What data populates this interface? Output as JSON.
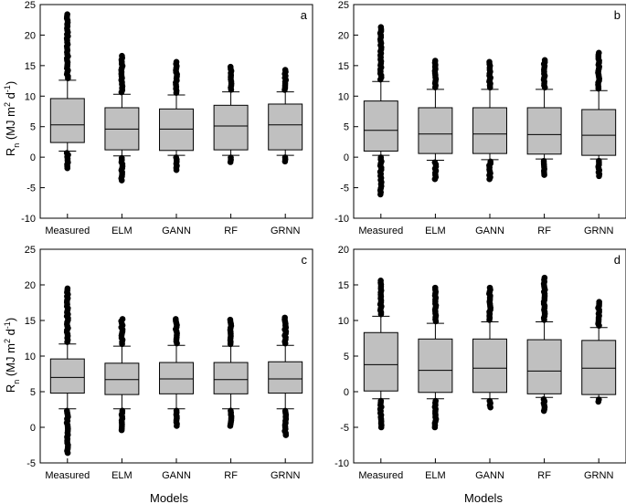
{
  "figure": {
    "ylabel_main": "R",
    "ylabel_sub": "n",
    "ylabel_unit_start": " (MJ m",
    "ylabel_sup1": "2",
    "ylabel_unit_mid": " d",
    "ylabel_sup2": "-1",
    "ylabel_unit_end": ")",
    "xlabel": "Models"
  },
  "chart_data": [
    {
      "type": "boxplot",
      "panel": "a",
      "categories": [
        "Measured",
        "ELM",
        "GANN",
        "RF",
        "GRNN"
      ],
      "ylim": [
        -10,
        25
      ],
      "yticks": [
        -10,
        -5,
        0,
        5,
        10,
        15,
        20,
        25
      ],
      "boxes": [
        {
          "q1": 2.4,
          "median": 5.3,
          "q3": 9.6,
          "whisker_low": 1.0,
          "whisker_high": 12.6,
          "outlier_min": -1.8,
          "outlier_max": 23.4
        },
        {
          "q1": 1.2,
          "median": 4.6,
          "q3": 8.1,
          "whisker_low": 0.2,
          "whisker_high": 10.3,
          "outlier_min": -3.8,
          "outlier_max": 16.6
        },
        {
          "q1": 1.1,
          "median": 4.6,
          "q3": 7.9,
          "whisker_low": 0.3,
          "whisker_high": 10.2,
          "outlier_min": -2.1,
          "outlier_max": 15.6
        },
        {
          "q1": 1.2,
          "median": 5.1,
          "q3": 8.5,
          "whisker_low": 0.3,
          "whisker_high": 10.7,
          "outlier_min": -0.8,
          "outlier_max": 14.8
        },
        {
          "q1": 1.2,
          "median": 5.3,
          "q3": 8.7,
          "whisker_low": 0.3,
          "whisker_high": 10.7,
          "outlier_min": -0.7,
          "outlier_max": 14.3
        }
      ]
    },
    {
      "type": "boxplot",
      "panel": "b",
      "categories": [
        "Measured",
        "ELM",
        "GANN",
        "RF",
        "GRNN"
      ],
      "ylim": [
        -10,
        25
      ],
      "yticks": [
        -10,
        -5,
        0,
        5,
        10,
        15,
        20,
        25
      ],
      "boxes": [
        {
          "q1": 1.0,
          "median": 4.4,
          "q3": 9.2,
          "whisker_low": 0.3,
          "whisker_high": 12.4,
          "outlier_min": -6.1,
          "outlier_max": 21.3
        },
        {
          "q1": 0.6,
          "median": 3.8,
          "q3": 8.1,
          "whisker_low": -0.5,
          "whisker_high": 11.1,
          "outlier_min": -3.6,
          "outlier_max": 15.8
        },
        {
          "q1": 0.6,
          "median": 3.8,
          "q3": 8.1,
          "whisker_low": -0.4,
          "whisker_high": 11.1,
          "outlier_min": -3.6,
          "outlier_max": 15.6
        },
        {
          "q1": 0.5,
          "median": 3.7,
          "q3": 8.1,
          "whisker_low": -0.3,
          "whisker_high": 11.1,
          "outlier_min": -2.9,
          "outlier_max": 15.9
        },
        {
          "q1": 0.3,
          "median": 3.6,
          "q3": 7.8,
          "whisker_low": -0.3,
          "whisker_high": 10.9,
          "outlier_min": -3.1,
          "outlier_max": 17.1
        }
      ]
    },
    {
      "type": "boxplot",
      "panel": "c",
      "categories": [
        "Measured",
        "ELM",
        "GANN",
        "RF",
        "GRNN"
      ],
      "ylim": [
        -5,
        25
      ],
      "yticks": [
        -5,
        0,
        5,
        10,
        15,
        20,
        25
      ],
      "boxes": [
        {
          "q1": 4.8,
          "median": 7.0,
          "q3": 9.6,
          "whisker_low": 2.6,
          "whisker_high": 11.7,
          "outlier_min": -3.6,
          "outlier_max": 19.5
        },
        {
          "q1": 4.6,
          "median": 6.7,
          "q3": 9.0,
          "whisker_low": 2.6,
          "whisker_high": 11.4,
          "outlier_min": -0.4,
          "outlier_max": 15.2
        },
        {
          "q1": 4.7,
          "median": 6.8,
          "q3": 9.1,
          "whisker_low": 2.6,
          "whisker_high": 11.5,
          "outlier_min": 0.2,
          "outlier_max": 15.2
        },
        {
          "q1": 4.7,
          "median": 6.7,
          "q3": 9.1,
          "whisker_low": 2.6,
          "whisker_high": 11.4,
          "outlier_min": 0.2,
          "outlier_max": 15.1
        },
        {
          "q1": 4.8,
          "median": 6.8,
          "q3": 9.2,
          "whisker_low": 2.6,
          "whisker_high": 11.5,
          "outlier_min": -1.1,
          "outlier_max": 15.4
        }
      ]
    },
    {
      "type": "boxplot",
      "panel": "d",
      "categories": [
        "Measured",
        "ELM",
        "GANN",
        "RF",
        "GRNN"
      ],
      "ylim": [
        -10,
        20
      ],
      "yticks": [
        -10,
        -5,
        0,
        5,
        10,
        15,
        20
      ],
      "boxes": [
        {
          "q1": 0.1,
          "median": 3.8,
          "q3": 8.3,
          "whisker_low": -1.0,
          "whisker_high": 10.6,
          "outlier_min": -5.0,
          "outlier_max": 15.6
        },
        {
          "q1": -0.1,
          "median": 3.0,
          "q3": 7.4,
          "whisker_low": -1.0,
          "whisker_high": 9.6,
          "outlier_min": -5.0,
          "outlier_max": 14.6
        },
        {
          "q1": -0.1,
          "median": 3.3,
          "q3": 7.4,
          "whisker_low": -1.0,
          "whisker_high": 9.8,
          "outlier_min": -2.2,
          "outlier_max": 14.6
        },
        {
          "q1": -0.3,
          "median": 2.9,
          "q3": 7.3,
          "whisker_low": -0.8,
          "whisker_high": 9.8,
          "outlier_min": -2.7,
          "outlier_max": 16.0
        },
        {
          "q1": -0.4,
          "median": 3.3,
          "q3": 7.2,
          "whisker_low": -0.8,
          "whisker_high": 9.0,
          "outlier_min": -1.4,
          "outlier_max": 12.6
        }
      ]
    }
  ]
}
